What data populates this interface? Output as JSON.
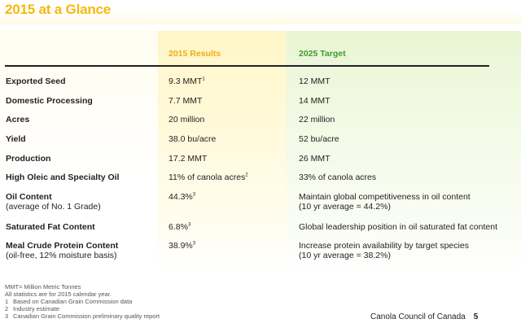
{
  "title": "2015 at a Glance",
  "headers": {
    "results": "2015 Results",
    "target": "2025 Target"
  },
  "rows": [
    {
      "label": "Exported Seed",
      "sub": "",
      "result": "9.3 MMT",
      "result_sup": "1",
      "target": "12 MMT",
      "target2": ""
    },
    {
      "label": "Domestic Processing",
      "sub": "",
      "result": "7.7 MMT",
      "result_sup": "",
      "target": "14 MMT",
      "target2": ""
    },
    {
      "label": "Acres",
      "sub": "",
      "result": "20 million",
      "result_sup": "",
      "target": "22 million",
      "target2": ""
    },
    {
      "label": "Yield",
      "sub": "",
      "result": "38.0 bu/acre",
      "result_sup": "",
      "target": "52 bu/acre",
      "target2": ""
    },
    {
      "label": "Production",
      "sub": "",
      "result": "17.2 MMT",
      "result_sup": "",
      "target": "26 MMT",
      "target2": ""
    },
    {
      "label": "High Oleic and Specialty Oil",
      "sub": "",
      "result": "11% of canola acres",
      "result_sup": "2",
      "target": "33% of canola acres",
      "target2": ""
    },
    {
      "label": "Oil Content",
      "sub": "(average of No. 1 Grade)",
      "result": "44.3%",
      "result_sup": "3",
      "target": "Maintain global competitiveness in oil content",
      "target2": "(10 yr average = 44.2%)"
    },
    {
      "label": "Saturated Fat Content",
      "sub": "",
      "result": "6.8%",
      "result_sup": "3",
      "target": "Global leadership position in oil saturated fat content",
      "target2": ""
    },
    {
      "label": "Meal Crude Protein Content",
      "sub": "(oil-free, 12% moisture basis)",
      "result": "38.9%",
      "result_sup": "3",
      "target": "Increase protein availability by target species",
      "target2": "(10 yr average = 38.2%)"
    }
  ],
  "notes": {
    "mmt": "MMT= Million Metric Tonnes",
    "calendar": "All statistics are for 2015 calendar year.",
    "items": [
      {
        "num": "1",
        "text": "Based on Canadian Grain Commission data"
      },
      {
        "num": "2",
        "text": "Industry estimate"
      },
      {
        "num": "3",
        "text": "Canadian Grain Commission preliminary quality report"
      }
    ]
  },
  "footer": {
    "org": "Canola Council of Canada",
    "page": "5"
  },
  "colors": {
    "title": "#f4b90b",
    "results_header": "#f0ad0b",
    "target_header": "#3f9a2f"
  }
}
